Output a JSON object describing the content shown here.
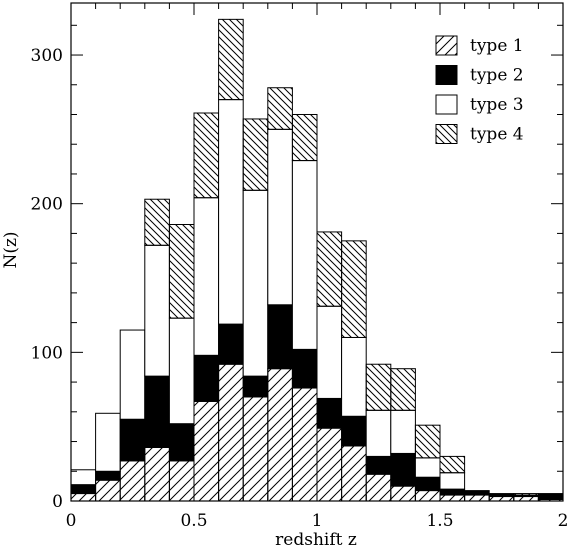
{
  "chart_data": {
    "type": "bar",
    "subtype": "stacked-histogram",
    "xlabel": "redshift z",
    "ylabel": "N(z)",
    "xlim": [
      0,
      2
    ],
    "ylim": [
      0,
      335
    ],
    "x_ticks": [
      0,
      0.5,
      1,
      1.5,
      2
    ],
    "x_tick_labels": [
      "0",
      "0.5",
      "1",
      "1.5",
      "2"
    ],
    "y_ticks": [
      0,
      100,
      200,
      300
    ],
    "y_tick_labels": [
      "0",
      "100",
      "200",
      "300"
    ],
    "bin_width": 0.1,
    "bin_starts": [
      0.0,
      0.1,
      0.2,
      0.3,
      0.4,
      0.5,
      0.6,
      0.7,
      0.8,
      0.9,
      1.0,
      1.1,
      1.2,
      1.3,
      1.4,
      1.5,
      1.6,
      1.7,
      1.8,
      1.9
    ],
    "series": [
      {
        "name": "type 1",
        "fill": "hatch-up",
        "values": [
          5,
          14,
          27,
          36,
          27,
          67,
          92,
          70,
          89,
          76,
          49,
          37,
          18,
          10,
          7,
          4,
          4,
          3,
          3,
          1
        ]
      },
      {
        "name": "type 2",
        "fill": "solid",
        "values": [
          6,
          6,
          28,
          48,
          25,
          31,
          27,
          14,
          43,
          26,
          20,
          20,
          12,
          22,
          9,
          4,
          3,
          2,
          1,
          4
        ]
      },
      {
        "name": "type 3",
        "fill": "empty",
        "values": [
          10,
          39,
          60,
          88,
          71,
          106,
          151,
          125,
          118,
          127,
          62,
          53,
          31,
          29,
          13,
          11,
          0,
          0,
          0,
          0
        ]
      },
      {
        "name": "type 4",
        "fill": "hatch-down",
        "values": [
          0,
          0,
          0,
          31,
          63,
          57,
          54,
          48,
          28,
          31,
          50,
          65,
          31,
          28,
          22,
          11,
          0,
          0,
          1,
          0
        ]
      }
    ],
    "legend": {
      "position": "top-right",
      "entries": [
        {
          "label": "type 1",
          "fill": "hatch-up"
        },
        {
          "label": "type 2",
          "fill": "solid"
        },
        {
          "label": "type 3",
          "fill": "empty"
        },
        {
          "label": "type 4",
          "fill": "hatch-down"
        }
      ]
    },
    "colors": {
      "ink": "#000000",
      "background": "#ffffff"
    },
    "grid": false
  }
}
